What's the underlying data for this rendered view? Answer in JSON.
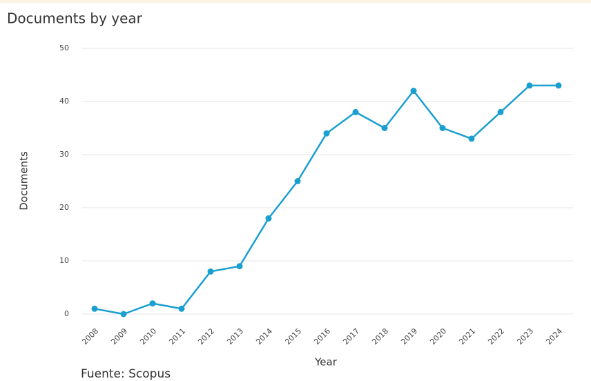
{
  "chart_data": {
    "type": "line",
    "title": "Documents by year",
    "y_label": "Documents",
    "x_label": "Year",
    "source": "Fuente: Scopus",
    "categories": [
      "2008",
      "2009",
      "2010",
      "2011",
      "2012",
      "2013",
      "2014",
      "2015",
      "2016",
      "2017",
      "2018",
      "2019",
      "2020",
      "2021",
      "2022",
      "2023",
      "2024"
    ],
    "values": [
      1,
      0,
      2,
      1,
      8,
      9,
      18,
      25,
      34,
      38,
      35,
      42,
      35,
      33,
      38,
      43,
      43
    ],
    "color": "#1a9fd0",
    "ylim": [
      0,
      50
    ],
    "yticks": [
      0,
      10,
      20,
      30,
      40,
      50
    ],
    "grid": true
  }
}
